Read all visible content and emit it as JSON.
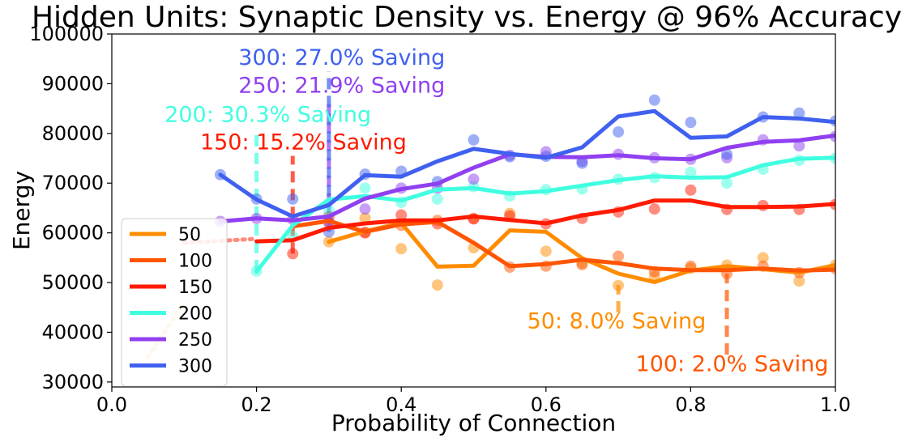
{
  "chart_data": {
    "type": "line",
    "title": "Hidden Units: Synaptic Density vs. Energy @ 96% Accuracy",
    "xlabel": "Probability of Connection",
    "ylabel": "Energy",
    "xlim": [
      0.0,
      1.0
    ],
    "ylim": [
      29000,
      100000
    ],
    "x_ticks": [
      "0.0",
      "0.2",
      "0.4",
      "0.6",
      "0.8",
      "1.0"
    ],
    "y_ticks": [
      "30000",
      "40000",
      "50000",
      "60000",
      "70000",
      "80000",
      "90000",
      "100000"
    ],
    "grid": false,
    "legend_position": "bottom-left",
    "series": [
      {
        "name": "50",
        "color": "#ff8c00",
        "line": [
          [
            0.3,
            58200
          ],
          [
            0.35,
            60300
          ],
          [
            0.4,
            62000
          ],
          [
            0.45,
            53200
          ],
          [
            0.5,
            53400
          ],
          [
            0.55,
            60500
          ],
          [
            0.6,
            60200
          ],
          [
            0.65,
            54900
          ],
          [
            0.7,
            51800
          ],
          [
            0.75,
            50100
          ],
          [
            0.8,
            52400
          ],
          [
            0.85,
            53300
          ],
          [
            0.9,
            52700
          ],
          [
            0.95,
            52000
          ],
          [
            1.0,
            53500
          ]
        ],
        "points": [
          [
            0.3,
            58200
          ],
          [
            0.35,
            63000
          ],
          [
            0.4,
            56800
          ],
          [
            0.45,
            49500
          ],
          [
            0.5,
            57000
          ],
          [
            0.55,
            63900
          ],
          [
            0.6,
            56300
          ],
          [
            0.65,
            53900
          ],
          [
            0.7,
            49400
          ],
          [
            0.75,
            51200
          ],
          [
            0.8,
            52900
          ],
          [
            0.85,
            53500
          ],
          [
            0.9,
            55000
          ],
          [
            0.95,
            50300
          ],
          [
            1.0,
            53500
          ]
        ],
        "baseline": [
          [
            0.05,
            35000
          ],
          [
            0.1,
            46000
          ]
        ],
        "drop_line": [
          [
            0.7,
            44000
          ],
          [
            0.7,
            49500
          ]
        ]
      },
      {
        "name": "100",
        "color": "#ff5500",
        "line": [
          [
            0.25,
            61300
          ],
          [
            0.3,
            62400
          ],
          [
            0.35,
            60200
          ],
          [
            0.4,
            61700
          ],
          [
            0.45,
            62200
          ],
          [
            0.5,
            58000
          ],
          [
            0.55,
            53300
          ],
          [
            0.6,
            53700
          ],
          [
            0.65,
            54600
          ],
          [
            0.7,
            53900
          ],
          [
            0.75,
            52800
          ],
          [
            0.8,
            52500
          ],
          [
            0.85,
            52500
          ],
          [
            0.9,
            52800
          ],
          [
            0.95,
            52400
          ],
          [
            1.0,
            52600
          ]
        ],
        "points": [
          [
            0.3,
            62100
          ],
          [
            0.35,
            60100
          ],
          [
            0.4,
            61500
          ],
          [
            0.45,
            62500
          ],
          [
            0.5,
            62900
          ],
          [
            0.55,
            53100
          ],
          [
            0.6,
            53300
          ],
          [
            0.65,
            53600
          ],
          [
            0.7,
            55300
          ],
          [
            0.75,
            52200
          ],
          [
            0.8,
            53300
          ],
          [
            0.85,
            51800
          ],
          [
            0.9,
            53300
          ],
          [
            0.95,
            52000
          ],
          [
            1.0,
            52800
          ]
        ],
        "baseline": [],
        "drop_line": [
          [
            0.85,
            35500
          ],
          [
            0.85,
            51800
          ]
        ]
      },
      {
        "name": "150",
        "color": "#ff1a00",
        "line": [
          [
            0.2,
            58300
          ],
          [
            0.25,
            58500
          ],
          [
            0.3,
            61000
          ],
          [
            0.35,
            61900
          ],
          [
            0.4,
            62500
          ],
          [
            0.45,
            62500
          ],
          [
            0.5,
            63300
          ],
          [
            0.55,
            62600
          ],
          [
            0.6,
            61900
          ],
          [
            0.65,
            63500
          ],
          [
            0.7,
            64600
          ],
          [
            0.75,
            66500
          ],
          [
            0.8,
            66500
          ],
          [
            0.85,
            65200
          ],
          [
            0.9,
            65200
          ],
          [
            0.95,
            65300
          ],
          [
            1.0,
            65800
          ]
        ],
        "points": [
          [
            0.25,
            55800
          ],
          [
            0.3,
            63300
          ],
          [
            0.35,
            60000
          ],
          [
            0.4,
            63600
          ],
          [
            0.45,
            61800
          ],
          [
            0.5,
            62800
          ],
          [
            0.55,
            63400
          ],
          [
            0.6,
            61800
          ],
          [
            0.65,
            62900
          ],
          [
            0.7,
            64200
          ],
          [
            0.75,
            64800
          ],
          [
            0.8,
            68600
          ],
          [
            0.85,
            64700
          ],
          [
            0.9,
            65500
          ],
          [
            0.95,
            64700
          ],
          [
            1.0,
            65700
          ]
        ],
        "baseline": [
          [
            0.1,
            58000
          ],
          [
            0.2,
            58800
          ]
        ],
        "drop_line": [
          [
            0.25,
            55800
          ],
          [
            0.25,
            75500
          ]
        ]
      },
      {
        "name": "200",
        "color": "#40ffe0",
        "line": [
          [
            0.2,
            52200
          ],
          [
            0.25,
            61500
          ],
          [
            0.3,
            66700
          ],
          [
            0.35,
            67400
          ],
          [
            0.4,
            66500
          ],
          [
            0.45,
            68700
          ],
          [
            0.5,
            69000
          ],
          [
            0.55,
            67900
          ],
          [
            0.6,
            68400
          ],
          [
            0.65,
            69500
          ],
          [
            0.7,
            70600
          ],
          [
            0.75,
            71400
          ],
          [
            0.8,
            71100
          ],
          [
            0.85,
            71200
          ],
          [
            0.9,
            73600
          ],
          [
            0.95,
            74900
          ],
          [
            1.0,
            75100
          ]
        ],
        "points": [
          [
            0.2,
            52300
          ],
          [
            0.25,
            59300
          ],
          [
            0.3,
            64500
          ],
          [
            0.35,
            69000
          ],
          [
            0.4,
            66100
          ],
          [
            0.45,
            66800
          ],
          [
            0.5,
            69300
          ],
          [
            0.55,
            67400
          ],
          [
            0.6,
            68700
          ],
          [
            0.65,
            68800
          ],
          [
            0.7,
            70800
          ],
          [
            0.75,
            71100
          ],
          [
            0.8,
            72200
          ],
          [
            0.85,
            70000
          ],
          [
            0.9,
            72800
          ],
          [
            0.95,
            74600
          ],
          [
            1.0,
            75000
          ]
        ],
        "baseline": [],
        "drop_line": [
          [
            0.2,
            52300
          ],
          [
            0.2,
            81000
          ]
        ]
      },
      {
        "name": "250",
        "color": "#9040f0",
        "line": [
          [
            0.15,
            62300
          ],
          [
            0.2,
            62900
          ],
          [
            0.25,
            62500
          ],
          [
            0.3,
            63300
          ],
          [
            0.35,
            66900
          ],
          [
            0.4,
            68800
          ],
          [
            0.45,
            69900
          ],
          [
            0.5,
            73100
          ],
          [
            0.55,
            75800
          ],
          [
            0.6,
            75300
          ],
          [
            0.65,
            75200
          ],
          [
            0.7,
            75600
          ],
          [
            0.75,
            75000
          ],
          [
            0.8,
            74800
          ],
          [
            0.85,
            77100
          ],
          [
            0.9,
            78300
          ],
          [
            0.95,
            78600
          ],
          [
            1.0,
            79600
          ]
        ],
        "points": [
          [
            0.15,
            62300
          ],
          [
            0.2,
            62900
          ],
          [
            0.25,
            62700
          ],
          [
            0.3,
            62100
          ],
          [
            0.35,
            64800
          ],
          [
            0.4,
            69000
          ],
          [
            0.45,
            69000
          ],
          [
            0.5,
            70800
          ],
          [
            0.55,
            75600
          ],
          [
            0.6,
            76300
          ],
          [
            0.65,
            74400
          ],
          [
            0.7,
            75800
          ],
          [
            0.75,
            75100
          ],
          [
            0.8,
            74800
          ],
          [
            0.85,
            75100
          ],
          [
            0.9,
            78700
          ],
          [
            0.95,
            77500
          ],
          [
            1.0,
            79400
          ]
        ],
        "baseline": [],
        "drop_line": [
          [
            0.3,
            62100
          ],
          [
            0.3,
            86500
          ]
        ]
      },
      {
        "name": "300",
        "color": "#4060f0",
        "line": [
          [
            0.15,
            71700
          ],
          [
            0.2,
            66700
          ],
          [
            0.25,
            63300
          ],
          [
            0.3,
            65600
          ],
          [
            0.35,
            71600
          ],
          [
            0.4,
            71300
          ],
          [
            0.45,
            74400
          ],
          [
            0.5,
            76900
          ],
          [
            0.55,
            75900
          ],
          [
            0.6,
            75100
          ],
          [
            0.65,
            77200
          ],
          [
            0.7,
            83400
          ],
          [
            0.75,
            84500
          ],
          [
            0.8,
            79100
          ],
          [
            0.85,
            79400
          ],
          [
            0.9,
            83300
          ],
          [
            0.95,
            83000
          ],
          [
            1.0,
            82300
          ]
        ],
        "points": [
          [
            0.15,
            71700
          ],
          [
            0.2,
            66800
          ],
          [
            0.25,
            66800
          ],
          [
            0.3,
            60200
          ],
          [
            0.35,
            71800
          ],
          [
            0.4,
            72400
          ],
          [
            0.45,
            70300
          ],
          [
            0.5,
            78700
          ],
          [
            0.55,
            75300
          ],
          [
            0.6,
            75400
          ],
          [
            0.65,
            74000
          ],
          [
            0.7,
            80300
          ],
          [
            0.75,
            86700
          ],
          [
            0.8,
            82200
          ],
          [
            0.85,
            75800
          ],
          [
            0.9,
            83300
          ],
          [
            0.95,
            84100
          ],
          [
            1.0,
            82500
          ]
        ],
        "baseline": [],
        "drop_line": [
          [
            0.3,
            60200
          ],
          [
            0.3,
            92500
          ]
        ]
      }
    ],
    "annotations": [
      {
        "text": "300: 27.0% Saving",
        "color": "#4060f0",
        "x": 0.175,
        "y": 93800
      },
      {
        "text": "250: 21.9% Saving",
        "color": "#9040f0",
        "x": 0.175,
        "y": 88200
      },
      {
        "text": "200: 30.3% Saving",
        "color": "#40ffe0",
        "x": 0.073,
        "y": 82300
      },
      {
        "text": "150: 15.2% Saving",
        "color": "#ff1a00",
        "x": 0.122,
        "y": 76800
      },
      {
        "text": "50: 8.0% Saving",
        "color": "#ff8c00",
        "x": 0.574,
        "y": 40800
      },
      {
        "text": "100: 2.0% Saving",
        "color": "#ff5500",
        "x": 0.724,
        "y": 32200
      }
    ]
  }
}
